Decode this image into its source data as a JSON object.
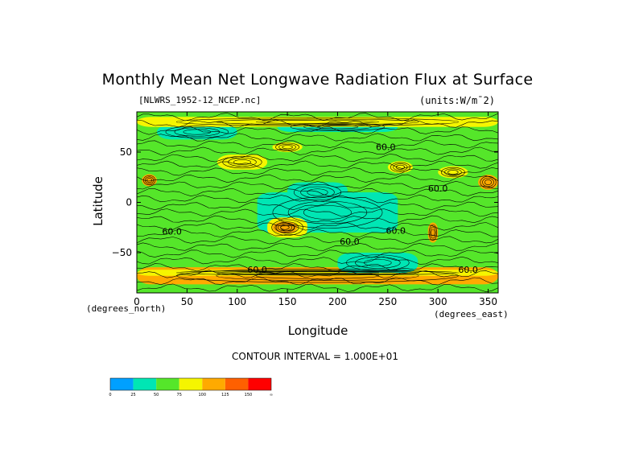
{
  "chart_data": {
    "type": "heatmap",
    "title": "Monthly Mean Net Longwave Radiation Flux at Surface",
    "file_label": "[NLWRS_1952-12_NCEP.nc]",
    "units_label": "(units:W/m^-2)",
    "xlabel": "Longitude",
    "ylabel": "Latitude",
    "x_note": "(degrees_east)",
    "y_note": "(degrees_north)",
    "xlim": [
      0,
      360
    ],
    "ylim": [
      -90,
      90
    ],
    "x_ticks": [
      "0",
      "50",
      "100",
      "150",
      "200",
      "250",
      "300",
      "350"
    ],
    "x_tick_values": [
      0,
      50,
      100,
      150,
      200,
      250,
      300,
      350
    ],
    "y_ticks": [
      "50",
      "0",
      "-50"
    ],
    "y_tick_values": [
      50,
      0,
      -50
    ],
    "contour_interval": "CONTOUR INTERVAL = 1.000E+01",
    "contour_labels": [
      {
        "text": "60.0",
        "lon": 248,
        "lat": 52
      },
      {
        "text": "60.0",
        "lon": 300,
        "lat": 11
      },
      {
        "text": "60.0",
        "lon": 212,
        "lat": -42
      },
      {
        "text": "60.0",
        "lon": 258,
        "lat": -31
      },
      {
        "text": "60.0",
        "lon": 35,
        "lat": -32
      },
      {
        "text": "60.0",
        "lon": 120,
        "lat": -70
      },
      {
        "text": "60.0",
        "lon": 330,
        "lat": -70
      }
    ],
    "colorbar": {
      "bounds": [
        "0",
        "25",
        "50",
        "75",
        "100",
        "125",
        "150",
        "∞"
      ],
      "colors": [
        "#00a0ff",
        "#00e6b4",
        "#55e62a",
        "#f5f500",
        "#ffaa00",
        "#ff6000",
        "#ff0000"
      ]
    },
    "regions": [
      {
        "lon": 0,
        "lat": 0,
        "w": 360,
        "h": 180,
        "level": 2
      },
      {
        "lon": 120,
        "lat": -10,
        "w": 140,
        "h": 40,
        "level": 1
      },
      {
        "lon": 150,
        "lat": 10,
        "w": 60,
        "h": 20,
        "level": 1
      },
      {
        "lon": 20,
        "lat": 70,
        "w": 80,
        "h": 15,
        "level": 1
      },
      {
        "lon": 140,
        "lat": 75,
        "w": 120,
        "h": 10,
        "level": 1
      },
      {
        "lon": 80,
        "lat": 40,
        "w": 50,
        "h": 15,
        "level": 3
      },
      {
        "lon": 135,
        "lat": 55,
        "w": 30,
        "h": 10,
        "level": 3
      },
      {
        "lon": 130,
        "lat": -25,
        "w": 40,
        "h": 20,
        "level": 3
      },
      {
        "lon": 135,
        "lat": -25,
        "w": 25,
        "h": 12,
        "level": 4
      },
      {
        "lon": 5,
        "lat": 22,
        "w": 15,
        "h": 12,
        "level": 4
      },
      {
        "lon": 250,
        "lat": 35,
        "w": 25,
        "h": 12,
        "level": 3
      },
      {
        "lon": 300,
        "lat": 30,
        "w": 30,
        "h": 12,
        "level": 3
      },
      {
        "lon": 340,
        "lat": 20,
        "w": 20,
        "h": 15,
        "level": 4
      },
      {
        "lon": 0,
        "lat": -73,
        "w": 360,
        "h": 17,
        "level": 4
      },
      {
        "lon": 0,
        "lat": -70,
        "w": 360,
        "h": 6,
        "level": 3
      },
      {
        "lon": 0,
        "lat": 80,
        "w": 360,
        "h": 10,
        "level": 3
      },
      {
        "lon": 200,
        "lat": -60,
        "w": 80,
        "h": 20,
        "level": 1
      },
      {
        "lon": 290,
        "lat": -30,
        "w": 10,
        "h": 20,
        "level": 4
      }
    ]
  }
}
